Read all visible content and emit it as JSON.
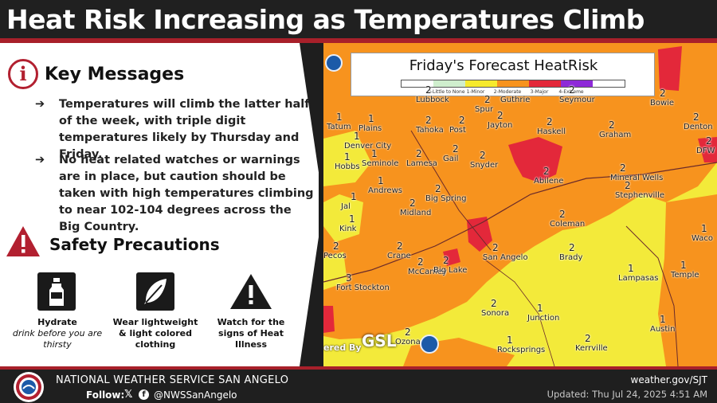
{
  "header": {
    "title": "Heat Risk Increasing as Temperatures Climb"
  },
  "key_messages": {
    "title": "Key Messages",
    "icon": "info-icon",
    "bullets": [
      "Temperatures will climb the latter half of the week, with triple digit temperatures likely by Thursday and Friday.",
      "No heat related watches or warnings are in place, but caution should be taken with high temperatures climbing to near 102-104 degrees across the Big Country."
    ]
  },
  "safety": {
    "title": "Safety Precautions",
    "icon": "warning-icon",
    "items": [
      {
        "icon": "water-bottle-icon",
        "title": "Hydrate",
        "subtitle": "drink before you are thirsty"
      },
      {
        "icon": "feather-icon",
        "title": "Wear lightweight & light colored clothing",
        "subtitle": ""
      },
      {
        "icon": "warning-sign-icon",
        "title": "Watch for the signs of Heat Illness",
        "subtitle": ""
      }
    ]
  },
  "map": {
    "title": "Friday's Forecast HeatRisk",
    "legend": [
      {
        "label": "0-Little to None",
        "color": "#cfeecd"
      },
      {
        "label": "1-Minor",
        "color": "#f6ea2d"
      },
      {
        "label": "2-Moderate",
        "color": "#f7931e"
      },
      {
        "label": "3-Major",
        "color": "#e3283a"
      },
      {
        "label": "4-Extreme",
        "color": "#8e2ad8"
      }
    ],
    "credit_prefix": "ered By",
    "credit_brand": "GSL",
    "cities": [
      {
        "name": "Lubbock",
        "risk": "2"
      },
      {
        "name": "Guthrie",
        "risk": ""
      },
      {
        "name": "Seymour",
        "risk": "2"
      },
      {
        "name": "Bowie",
        "risk": "2"
      },
      {
        "name": "Tatum",
        "risk": "1"
      },
      {
        "name": "Plains",
        "risk": "1"
      },
      {
        "name": "Tahoka",
        "risk": "2"
      },
      {
        "name": "Post",
        "risk": "2"
      },
      {
        "name": "Spur",
        "risk": "2"
      },
      {
        "name": "Jayton",
        "risk": "2"
      },
      {
        "name": "Haskell",
        "risk": "2"
      },
      {
        "name": "Graham",
        "risk": "2"
      },
      {
        "name": "Denton",
        "risk": "2"
      },
      {
        "name": "Denver City",
        "risk": "1"
      },
      {
        "name": "Seminole",
        "risk": "1"
      },
      {
        "name": "Lamesa",
        "risk": "2"
      },
      {
        "name": "Gail",
        "risk": "2"
      },
      {
        "name": "Snyder",
        "risk": "2"
      },
      {
        "name": "Mineral Wells",
        "risk": "2"
      },
      {
        "name": "DFW",
        "risk": "2"
      },
      {
        "name": "Hobbs",
        "risk": "1"
      },
      {
        "name": "Andrews",
        "risk": "1"
      },
      {
        "name": "Big Spring",
        "risk": "2"
      },
      {
        "name": "Abilene",
        "risk": "2"
      },
      {
        "name": "Stephenville",
        "risk": "2"
      },
      {
        "name": "Jal",
        "risk": "1"
      },
      {
        "name": "Midland",
        "risk": "2"
      },
      {
        "name": "Coleman",
        "risk": "2"
      },
      {
        "name": "Kink",
        "risk": "1"
      },
      {
        "name": "Waco",
        "risk": "1"
      },
      {
        "name": "Pecos",
        "risk": "2"
      },
      {
        "name": "Crane",
        "risk": "2"
      },
      {
        "name": "San Angelo",
        "risk": "2"
      },
      {
        "name": "Brady",
        "risk": "2"
      },
      {
        "name": "McCamey",
        "risk": "2"
      },
      {
        "name": "Big Lake",
        "risk": "2"
      },
      {
        "name": "Lampasas",
        "risk": "1"
      },
      {
        "name": "Temple",
        "risk": "1"
      },
      {
        "name": "Fort Stockton",
        "risk": "3"
      },
      {
        "name": "Sonora",
        "risk": "2"
      },
      {
        "name": "Junction",
        "risk": "1"
      },
      {
        "name": "Austin",
        "risk": "1"
      },
      {
        "name": "Ozona",
        "risk": "2"
      },
      {
        "name": "Rocksprings",
        "risk": "1"
      },
      {
        "name": "Kerrville",
        "risk": "2"
      }
    ]
  },
  "footer": {
    "office": "NATIONAL WEATHER SERVICE SAN ANGELO",
    "follow": "Follow:",
    "x_glyph": "𝕏",
    "fb_glyph": "f",
    "handle": "@NWSSanAngelo",
    "website": "weather.gov/SJT",
    "updated": "Updated: Thu Jul 24, 2025 4:51 AM"
  }
}
